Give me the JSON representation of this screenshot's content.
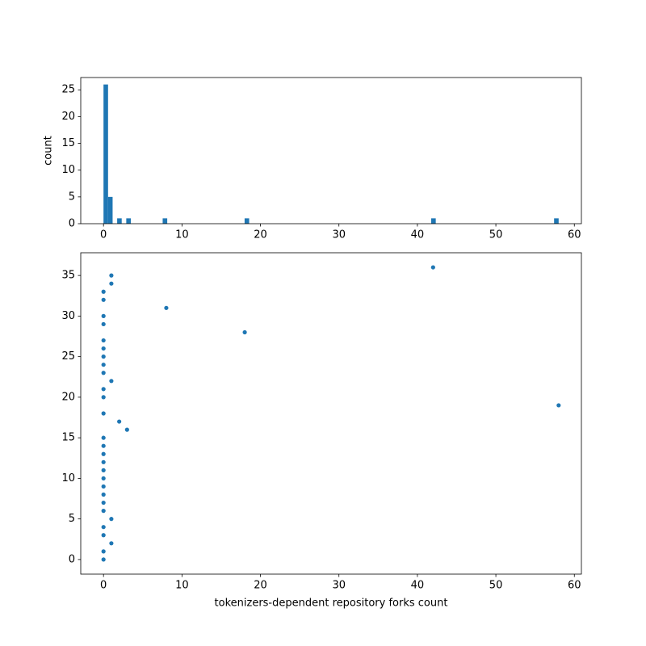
{
  "chart_data": [
    {
      "type": "histogram",
      "ylabel": "count",
      "color": "#1f77b4",
      "bins": [
        0,
        0.58,
        1.16,
        1.74,
        2.32,
        2.9,
        3.48,
        4.06,
        4.64,
        5.22,
        5.8,
        6.38,
        6.96,
        7.54,
        8.12,
        8.7,
        9.28,
        9.86,
        10.44,
        11.02,
        11.6,
        12.18,
        12.76,
        13.34,
        13.92,
        14.5,
        15.08,
        15.66,
        16.24,
        16.82,
        17.4,
        17.98,
        18.56,
        19.14,
        19.72,
        20.3,
        20.88,
        21.46,
        22.04,
        22.62,
        23.2,
        23.78,
        24.36,
        24.94,
        25.52,
        26.1,
        26.68,
        27.26,
        27.84,
        28.42,
        29,
        29.58,
        30.16,
        30.74,
        31.32,
        31.9,
        32.48,
        33.06,
        33.64,
        34.22,
        34.8,
        35.38,
        35.96,
        36.54,
        37.12,
        37.7,
        38.28,
        38.86,
        39.44,
        40.02,
        40.6,
        41.18,
        41.76,
        42.34,
        42.92,
        43.5,
        44.08,
        44.66,
        45.24,
        45.82,
        46.4,
        46.98,
        47.56,
        48.14,
        48.72,
        49.3,
        49.88,
        50.46,
        51.04,
        51.62,
        52.2,
        52.78,
        53.36,
        53.94,
        54.52,
        55.1,
        55.68,
        56.26,
        56.84,
        57.42,
        58
      ],
      "counts": [
        26,
        5,
        0,
        1,
        0,
        1,
        0,
        0,
        0,
        0,
        0,
        0,
        0,
        1,
        0,
        0,
        0,
        0,
        0,
        0,
        0,
        0,
        0,
        0,
        0,
        0,
        0,
        0,
        0,
        0,
        0,
        1,
        0,
        0,
        0,
        0,
        0,
        0,
        0,
        0,
        0,
        0,
        0,
        0,
        0,
        0,
        0,
        0,
        0,
        0,
        0,
        0,
        0,
        0,
        0,
        0,
        0,
        0,
        0,
        0,
        0,
        0,
        0,
        0,
        0,
        0,
        0,
        0,
        0,
        0,
        0,
        0,
        1,
        0,
        0,
        0,
        0,
        0,
        0,
        0,
        0,
        0,
        0,
        0,
        0,
        0,
        0,
        0,
        0,
        0,
        0,
        0,
        0,
        0,
        0,
        0,
        0,
        0,
        0,
        1
      ],
      "xlim": [
        -2.9,
        60.9
      ],
      "xticks": [
        0,
        10,
        20,
        30,
        40,
        50,
        60
      ],
      "ylim": [
        0,
        27.3
      ],
      "yticks": [
        0,
        5,
        10,
        15,
        20,
        25
      ]
    },
    {
      "type": "scatter",
      "xlabel": "tokenizers-dependent repository forks count",
      "color": "#1f77b4",
      "x": [
        0,
        0,
        1,
        0,
        0,
        1,
        0,
        0,
        0,
        0,
        0,
        0,
        0,
        0,
        0,
        0,
        3,
        2,
        0,
        58,
        0,
        0,
        1,
        0,
        0,
        0,
        0,
        0,
        18,
        0,
        0,
        8,
        0,
        0,
        1,
        1,
        42
      ],
      "values": [
        0,
        1,
        2,
        3,
        4,
        5,
        6,
        7,
        8,
        9,
        10,
        11,
        12,
        13,
        14,
        15,
        16,
        17,
        18,
        19,
        20,
        21,
        22,
        23,
        24,
        25,
        26,
        27,
        28,
        29,
        30,
        31,
        32,
        33,
        34,
        35,
        36
      ],
      "xlim": [
        -2.9,
        60.9
      ],
      "xticks": [
        0,
        10,
        20,
        30,
        40,
        50,
        60
      ],
      "ylim": [
        -1.8,
        37.8
      ],
      "yticks": [
        0,
        5,
        10,
        15,
        20,
        25,
        30,
        35
      ]
    }
  ]
}
